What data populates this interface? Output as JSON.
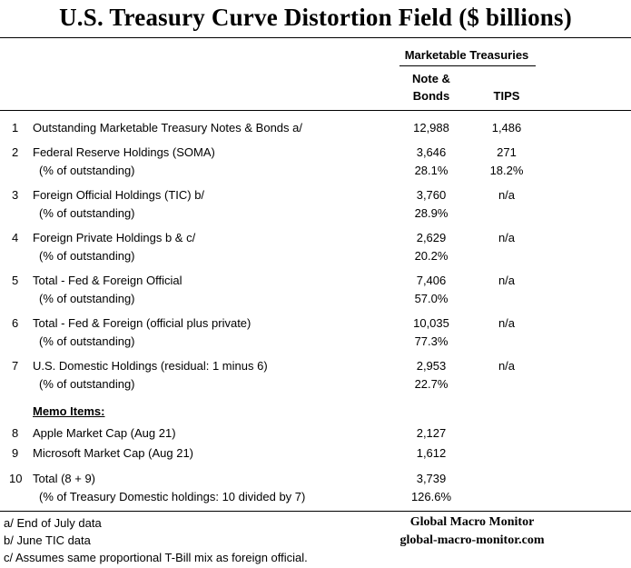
{
  "title": "U.S. Treasury Curve Distortion Field ($ billions)",
  "header": {
    "group": "Marketable Treasuries",
    "col1_line1": "Note &",
    "col1_line2": "Bonds",
    "col2": "TIPS"
  },
  "rows": [
    {
      "num": "1",
      "label": "Outstanding Marketable Treasury Notes & Bonds  a/",
      "nb": "12,988",
      "tips": "1,486",
      "sub": "",
      "sub_nb": "",
      "sub_tips": ""
    },
    {
      "num": "2",
      "label": "Federal Reserve Holdings (SOMA)",
      "nb": "3,646",
      "tips": "271",
      "sub": "(% of outstanding)",
      "sub_nb": "28.1%",
      "sub_tips": "18.2%"
    },
    {
      "num": "3",
      "label": "Foreign Official Holdings (TIC) b/",
      "nb": "3,760",
      "tips": "n/a",
      "sub": "(% of outstanding)",
      "sub_nb": "28.9%",
      "sub_tips": ""
    },
    {
      "num": "4",
      "label": "Foreign Private Holdings b & c/",
      "nb": "2,629",
      "tips": "n/a",
      "sub": "(% of outstanding)",
      "sub_nb": "20.2%",
      "sub_tips": ""
    },
    {
      "num": "5",
      "label": "Total - Fed & Foreign Official",
      "nb": "7,406",
      "tips": "n/a",
      "sub": "(% of outstanding)",
      "sub_nb": "57.0%",
      "sub_tips": ""
    },
    {
      "num": "6",
      "label": "Total - Fed & Foreign (official plus private)",
      "nb": "10,035",
      "tips": "n/a",
      "sub": "(% of outstanding)",
      "sub_nb": "77.3%",
      "sub_tips": ""
    },
    {
      "num": "7",
      "label": "U.S. Domestic Holdings (residual:  1 minus 6)",
      "nb": "2,953",
      "tips": "n/a",
      "sub": "(% of outstanding)",
      "sub_nb": "22.7%",
      "sub_tips": ""
    }
  ],
  "memo": {
    "heading": "Memo Items:",
    "rows": [
      {
        "num": "8",
        "label": "Apple Market Cap (Aug 21)",
        "nb": "2,127"
      },
      {
        "num": "9",
        "label": "Microsoft Market Cap (Aug 21)",
        "nb": "1,612"
      },
      {
        "num": "10",
        "label": "Total  (8 + 9)",
        "nb": "3,739"
      }
    ],
    "sub_label": "(% of Treasury Domestic holdings:  10 divided by 7)",
    "sub_value": "126.6%"
  },
  "footnotes": [
    "a/  End of July data",
    "b/ June TIC data",
    "c/ Assumes same proportional T-Bill mix as foreign official."
  ],
  "brand": {
    "name": "Global Macro Monitor",
    "url": "global-macro-monitor.com"
  }
}
